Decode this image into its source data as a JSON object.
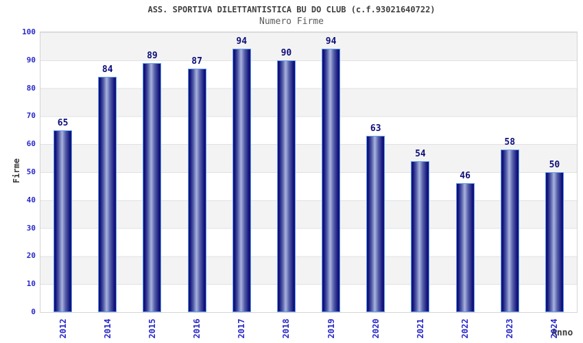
{
  "chart_data": {
    "type": "bar",
    "title": "ASS. SPORTIVA DILETTANTISTICA BU DO CLUB (c.f.93021640722)",
    "subtitle": "Numero Firme",
    "xlabel": "Anno",
    "ylabel": "Firme",
    "categories": [
      "2012",
      "2014",
      "2015",
      "2016",
      "2017",
      "2018",
      "2019",
      "2020",
      "2021",
      "2022",
      "2023",
      "2024"
    ],
    "values": [
      65,
      84,
      89,
      87,
      94,
      90,
      94,
      63,
      54,
      46,
      58,
      50
    ],
    "ylim": [
      0,
      100
    ],
    "ytick_step": 10,
    "ytick_labels": [
      "0",
      "10",
      "20",
      "30",
      "40",
      "50",
      "60",
      "70",
      "80",
      "90",
      "100"
    ],
    "grid": true,
    "legend": "none",
    "band_fill": true,
    "colors": {
      "bar_dark": "#12127a",
      "bar_mid": "#5560aa",
      "bar_light": "#aab3dd",
      "bar_border": "#5f9df0",
      "tick_label": "#2828cc",
      "value_label": "#0d0d7a",
      "axis_title": "#3a3a3a",
      "title": "#404040",
      "subtitle": "#5a5a5a",
      "band": "#f3f3f3",
      "band_alt": "#ffffff",
      "gridline": "#e1e1e1",
      "plot_border": "#d4d4d4",
      "background": "#ffffff"
    }
  }
}
